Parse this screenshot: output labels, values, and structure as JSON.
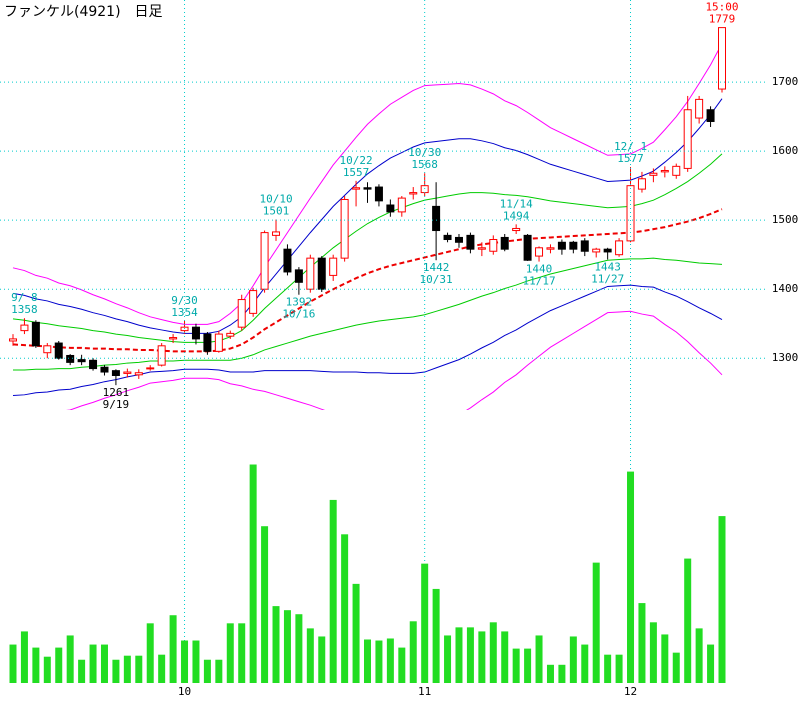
{
  "chart_data": {
    "type": "candlestick",
    "title": "ファンケル(4921)　日足",
    "categories": [
      null,
      null,
      null,
      null,
      null,
      null,
      null,
      null,
      null,
      null,
      null,
      null,
      null,
      null,
      null,
      "10",
      null,
      null,
      null,
      null,
      null,
      null,
      null,
      null,
      null,
      null,
      null,
      null,
      null,
      null,
      null,
      null,
      null,
      null,
      null,
      null,
      "11",
      null,
      null,
      null,
      null,
      null,
      null,
      null,
      null,
      null,
      null,
      null,
      null,
      null,
      null,
      null,
      null,
      null,
      "12",
      null,
      null,
      null,
      null,
      null,
      null,
      null,
      null
    ],
    "open": [
      1325,
      1340,
      1352,
      1308,
      1322,
      1304,
      1298,
      1297,
      1287,
      1282,
      1278,
      1276,
      1285,
      1290,
      1328,
      1340,
      1345,
      1335,
      1310,
      1332,
      1345,
      1365,
      1400,
      1478,
      1458,
      1428,
      1400,
      1445,
      1420,
      1445,
      1545,
      1547,
      1548,
      1522,
      1512,
      1538,
      1540,
      1520,
      1478,
      1475,
      1478,
      1458,
      1455,
      1475,
      1485,
      1478,
      1448,
      1458,
      1468,
      1468,
      1470,
      1454,
      1458,
      1450,
      1470,
      1545,
      1565,
      1570,
      1565,
      1575,
      1648,
      1660,
      1690
    ],
    "high": [
      1335,
      1358,
      1355,
      1322,
      1325,
      1306,
      1305,
      1300,
      1290,
      1284,
      1285,
      1284,
      1290,
      1322,
      1335,
      1354,
      1350,
      1338,
      1340,
      1340,
      1392,
      1402,
      1485,
      1501,
      1465,
      1432,
      1450,
      1448,
      1450,
      1535,
      1557,
      1555,
      1552,
      1530,
      1535,
      1548,
      1568,
      1555,
      1482,
      1480,
      1482,
      1468,
      1478,
      1480,
      1494,
      1480,
      1462,
      1465,
      1472,
      1470,
      1474,
      1460,
      1460,
      1474,
      1577,
      1570,
      1575,
      1578,
      1582,
      1680,
      1680,
      1665,
      1779
    ],
    "low": [
      1318,
      1335,
      1315,
      1300,
      1298,
      1290,
      1290,
      1282,
      1275,
      1261,
      1272,
      1270,
      1282,
      1288,
      1322,
      1335,
      1320,
      1305,
      1308,
      1328,
      1340,
      1360,
      1395,
      1470,
      1420,
      1392,
      1395,
      1396,
      1412,
      1440,
      1520,
      1525,
      1520,
      1505,
      1505,
      1530,
      1535,
      1442,
      1468,
      1460,
      1452,
      1448,
      1450,
      1455,
      1480,
      1441,
      1440,
      1452,
      1450,
      1452,
      1448,
      1446,
      1443,
      1447,
      1468,
      1540,
      1555,
      1562,
      1560,
      1570,
      1640,
      1635,
      1685
    ],
    "close": [
      1328,
      1348,
      1318,
      1318,
      1300,
      1294,
      1295,
      1285,
      1280,
      1275,
      1280,
      1279,
      1286,
      1318,
      1330,
      1345,
      1328,
      1310,
      1335,
      1336,
      1385,
      1398,
      1482,
      1483,
      1425,
      1410,
      1445,
      1400,
      1445,
      1530,
      1547,
      1545,
      1528,
      1512,
      1532,
      1540,
      1550,
      1485,
      1472,
      1468,
      1458,
      1460,
      1472,
      1458,
      1488,
      1442,
      1460,
      1460,
      1458,
      1458,
      1455,
      1458,
      1454,
      1470,
      1550,
      1560,
      1568,
      1572,
      1578,
      1660,
      1675,
      1643,
      1779
    ],
    "up_color": "#ff0000",
    "down_color": "#000000",
    "ylim": [
      1225,
      1819
    ],
    "yticks": [
      1300,
      1400,
      1500,
      1600,
      1700
    ],
    "grid_color": "#00cccc",
    "bands": {
      "ma": [
        1320,
        1319,
        1318,
        1317,
        1316,
        1315,
        1315,
        1314,
        1314,
        1313,
        1313,
        1312,
        1312,
        1311,
        1310,
        1310,
        1310,
        1310,
        1311,
        1314,
        1320,
        1330,
        1342,
        1352,
        1362,
        1372,
        1382,
        1391,
        1400,
        1408,
        1416,
        1423,
        1429,
        1434,
        1438,
        1442,
        1446,
        1450,
        1454,
        1458,
        1462,
        1465,
        1467,
        1469,
        1471,
        1473,
        1474,
        1475,
        1476,
        1477,
        1478,
        1479,
        1480,
        1481,
        1482,
        1484,
        1487,
        1490,
        1494,
        1498,
        1503,
        1509,
        1516
      ],
      "sigma": [
        37,
        36,
        34,
        33,
        31,
        30,
        28,
        26,
        24,
        22,
        20,
        18,
        16,
        15,
        14,
        13,
        13,
        13,
        14,
        17,
        20,
        25,
        30,
        35,
        40,
        45,
        50,
        55,
        60,
        64,
        68,
        72,
        75,
        78,
        80,
        82,
        83,
        82,
        81,
        80,
        78,
        75,
        72,
        68,
        65,
        61,
        57,
        53,
        50,
        47,
        44,
        41,
        38,
        38,
        38,
        40,
        42,
        47,
        52,
        58,
        65,
        72,
        80
      ],
      "ma_color": "#ee0000",
      "band_colors": [
        "#00cc00",
        "#0000cc",
        "#ff00ff"
      ]
    },
    "annotations": [
      {
        "index": 1,
        "side": "above",
        "color": "#00aaaa",
        "lines": [
          "9/ 8",
          "1358"
        ]
      },
      {
        "index": 9,
        "side": "below",
        "color": "#000000",
        "lines": [
          "1261",
          "9/19"
        ]
      },
      {
        "index": 15,
        "side": "above",
        "color": "#00aaaa",
        "lines": [
          "9/30",
          "1354"
        ]
      },
      {
        "index": 23,
        "side": "above",
        "color": "#00aaaa",
        "lines": [
          "10/10",
          "1501"
        ]
      },
      {
        "index": 25,
        "side": "below",
        "color": "#00aaaa",
        "lines": [
          "1392",
          "10/16"
        ]
      },
      {
        "index": 30,
        "side": "above",
        "color": "#00aaaa",
        "lines": [
          "10/22",
          "1557"
        ]
      },
      {
        "index": 36,
        "side": "above",
        "color": "#00aaaa",
        "lines": [
          "10/30",
          "1568"
        ]
      },
      {
        "index": 37,
        "side": "below",
        "color": "#00aaaa",
        "lines": [
          "1442",
          "10/31"
        ]
      },
      {
        "index": 44,
        "side": "above",
        "color": "#00aaaa",
        "lines": [
          "11/14",
          "1494"
        ]
      },
      {
        "index": 46,
        "side": "below",
        "color": "#00aaaa",
        "lines": [
          "1440",
          "11/17"
        ]
      },
      {
        "index": 52,
        "side": "below",
        "color": "#00aaaa",
        "lines": [
          "1443",
          "11/27"
        ]
      },
      {
        "index": 54,
        "side": "above",
        "color": "#00aaaa",
        "lines": [
          "12/ 1",
          "1577"
        ]
      },
      {
        "index": 62,
        "side": "above",
        "color": "#ff0000",
        "lines": [
          "15:00",
          "1779"
        ]
      }
    ],
    "volume": {
      "values": [
        38,
        51,
        35,
        26,
        35,
        47,
        23,
        38,
        38,
        23,
        27,
        27,
        59,
        28,
        67,
        42,
        42,
        23,
        23,
        59,
        59,
        216,
        155,
        76,
        72,
        68,
        54,
        46,
        181,
        147,
        98,
        43,
        42,
        44,
        35,
        61,
        118,
        93,
        47,
        55,
        55,
        51,
        60,
        51,
        34,
        34,
        47,
        18,
        18,
        46,
        38,
        119,
        28,
        28,
        209,
        79,
        60,
        48,
        30,
        123,
        54,
        38,
        165
      ],
      "color": "#22dd22",
      "ylim": [
        0,
        260
      ]
    }
  }
}
